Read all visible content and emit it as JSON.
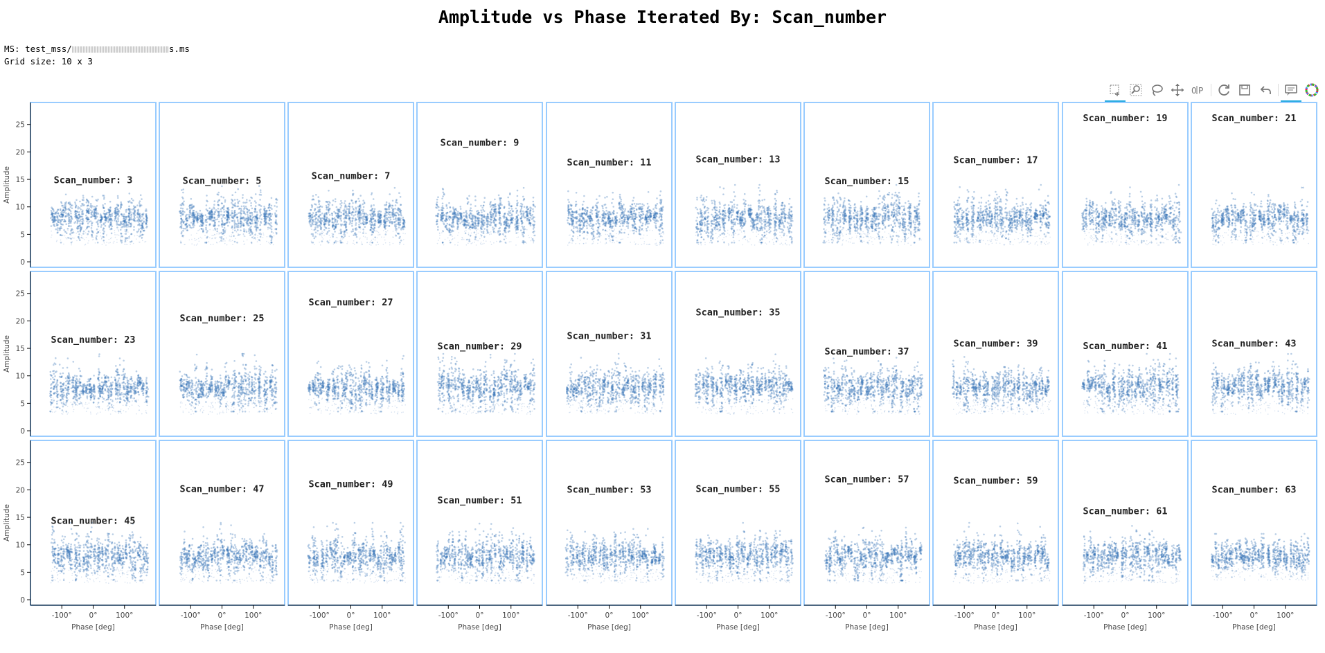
{
  "title": "Amplitude vs Phase Iterated By: Scan_number",
  "info": {
    "ms": "MS: test_mss/",
    "ms_suffix": "s.ms",
    "grid": "Grid size: 10 x 3"
  },
  "toolbar": [
    {
      "name": "box-select-icon",
      "active": true
    },
    {
      "name": "box-zoom-icon",
      "active": false
    },
    {
      "name": "lasso-select-icon",
      "active": false
    },
    {
      "name": "pan-icon",
      "active": false
    },
    {
      "name": "locate-icon",
      "active": false
    },
    {
      "name": "reset-icon",
      "active": false
    },
    {
      "name": "save-icon",
      "active": false
    },
    {
      "name": "undo-icon",
      "active": false
    },
    {
      "name": "hover-icon",
      "active": true
    },
    {
      "name": "bokeh-logo-icon",
      "active": false
    }
  ],
  "colors": {
    "points": "#3a75b8",
    "frame": "#99ccff",
    "accent": "#26aae1"
  },
  "chart_data": {
    "type": "scatter",
    "grid": {
      "columns": 10,
      "rows": 3
    },
    "xlabel": "Phase [deg]",
    "ylabel": "Amplitude",
    "xlim": [
      -200,
      200
    ],
    "ylim": [
      -1,
      29
    ],
    "xticks": [
      -100,
      0,
      100
    ],
    "xtick_labels": [
      "-100°",
      "0°",
      "100°"
    ],
    "yticks": [
      0,
      5,
      10,
      15,
      20,
      25
    ],
    "ytick_labels": [
      "0",
      "5",
      "10",
      "15",
      "20",
      "25"
    ],
    "panels": [
      {
        "label": "Scan_number: 3",
        "label_y": 14.3,
        "x_range": [
          -135,
          175
        ],
        "y_range": [
          3.5,
          14
        ],
        "center": 8
      },
      {
        "label": "Scan_number: 5",
        "label_y": 14.2,
        "x_range": [
          -135,
          175
        ],
        "y_range": [
          3.5,
          14
        ],
        "center": 8
      },
      {
        "label": "Scan_number: 7",
        "label_y": 15.1,
        "x_range": [
          -135,
          175
        ],
        "y_range": [
          3.5,
          14
        ],
        "center": 8
      },
      {
        "label": "Scan_number: 9",
        "label_y": 21.1,
        "x_range": [
          -135,
          175
        ],
        "y_range": [
          3.5,
          14
        ],
        "center": 8
      },
      {
        "label": "Scan_number: 11",
        "label_y": 17.5,
        "x_range": [
          -135,
          175
        ],
        "y_range": [
          3.5,
          14
        ],
        "center": 8
      },
      {
        "label": "Scan_number: 13",
        "label_y": 18.1,
        "x_range": [
          -135,
          175
        ],
        "y_range": [
          3.5,
          14
        ],
        "center": 8
      },
      {
        "label": "Scan_number: 15",
        "label_y": 14.1,
        "x_range": [
          -135,
          175
        ],
        "y_range": [
          3.5,
          14
        ],
        "center": 8
      },
      {
        "label": "Scan_number: 17",
        "label_y": 18.0,
        "x_range": [
          -135,
          175
        ],
        "y_range": [
          3.5,
          14
        ],
        "center": 8
      },
      {
        "label": "Scan_number: 19",
        "label_y": 25.6,
        "x_range": [
          -135,
          175
        ],
        "y_range": [
          3.5,
          14
        ],
        "center": 8
      },
      {
        "label": "Scan_number: 21",
        "label_y": 25.6,
        "x_range": [
          -135,
          175
        ],
        "y_range": [
          3.5,
          14
        ],
        "center": 8
      },
      {
        "label": "Scan_number: 23",
        "label_y": 16.0,
        "x_range": [
          -135,
          175
        ],
        "y_range": [
          3.5,
          14
        ],
        "center": 8
      },
      {
        "label": "Scan_number: 25",
        "label_y": 19.9,
        "x_range": [
          -135,
          175
        ],
        "y_range": [
          3.5,
          14
        ],
        "center": 8
      },
      {
        "label": "Scan_number: 27",
        "label_y": 22.8,
        "x_range": [
          -135,
          175
        ],
        "y_range": [
          3.5,
          14
        ],
        "center": 8
      },
      {
        "label": "Scan_number: 29",
        "label_y": 14.8,
        "x_range": [
          -135,
          175
        ],
        "y_range": [
          3.5,
          14
        ],
        "center": 8
      },
      {
        "label": "Scan_number: 31",
        "label_y": 16.7,
        "x_range": [
          -135,
          175
        ],
        "y_range": [
          3.5,
          14
        ],
        "center": 8
      },
      {
        "label": "Scan_number: 35",
        "label_y": 21.0,
        "x_range": [
          -135,
          175
        ],
        "y_range": [
          3.5,
          14
        ],
        "center": 8
      },
      {
        "label": "Scan_number: 37",
        "label_y": 13.9,
        "x_range": [
          -135,
          175
        ],
        "y_range": [
          3.5,
          14
        ],
        "center": 8
      },
      {
        "label": "Scan_number: 39",
        "label_y": 15.3,
        "x_range": [
          -135,
          175
        ],
        "y_range": [
          3.5,
          14
        ],
        "center": 8
      },
      {
        "label": "Scan_number: 41",
        "label_y": 14.9,
        "x_range": [
          -135,
          175
        ],
        "y_range": [
          3.5,
          14
        ],
        "center": 8
      },
      {
        "label": "Scan_number: 43",
        "label_y": 15.3,
        "x_range": [
          -135,
          175
        ],
        "y_range": [
          3.5,
          14
        ],
        "center": 8
      },
      {
        "label": "Scan_number: 45",
        "label_y": 13.8,
        "x_range": [
          -135,
          175
        ],
        "y_range": [
          3.5,
          14
        ],
        "center": 8
      },
      {
        "label": "Scan_number: 47",
        "label_y": 19.6,
        "x_range": [
          -135,
          175
        ],
        "y_range": [
          3.5,
          14
        ],
        "center": 8
      },
      {
        "label": "Scan_number: 49",
        "label_y": 20.5,
        "x_range": [
          -135,
          175
        ],
        "y_range": [
          3.5,
          14
        ],
        "center": 8
      },
      {
        "label": "Scan_number: 51",
        "label_y": 17.5,
        "x_range": [
          -135,
          175
        ],
        "y_range": [
          3.5,
          14
        ],
        "center": 8
      },
      {
        "label": "Scan_number: 53",
        "label_y": 19.5,
        "x_range": [
          -135,
          175
        ],
        "y_range": [
          3.5,
          14
        ],
        "center": 8
      },
      {
        "label": "Scan_number: 55",
        "label_y": 19.6,
        "x_range": [
          -135,
          175
        ],
        "y_range": [
          3.5,
          14
        ],
        "center": 8
      },
      {
        "label": "Scan_number: 57",
        "label_y": 21.4,
        "x_range": [
          -135,
          175
        ],
        "y_range": [
          3.5,
          14
        ],
        "center": 8
      },
      {
        "label": "Scan_number: 59",
        "label_y": 21.1,
        "x_range": [
          -135,
          175
        ],
        "y_range": [
          3.5,
          14
        ],
        "center": 8
      },
      {
        "label": "Scan_number: 61",
        "label_y": 15.6,
        "x_range": [
          -135,
          175
        ],
        "y_range": [
          3.5,
          14
        ],
        "center": 8
      },
      {
        "label": "Scan_number: 63",
        "label_y": 19.5,
        "x_range": [
          -135,
          175
        ],
        "y_range": [
          4,
          12
        ],
        "center": 8
      }
    ]
  }
}
